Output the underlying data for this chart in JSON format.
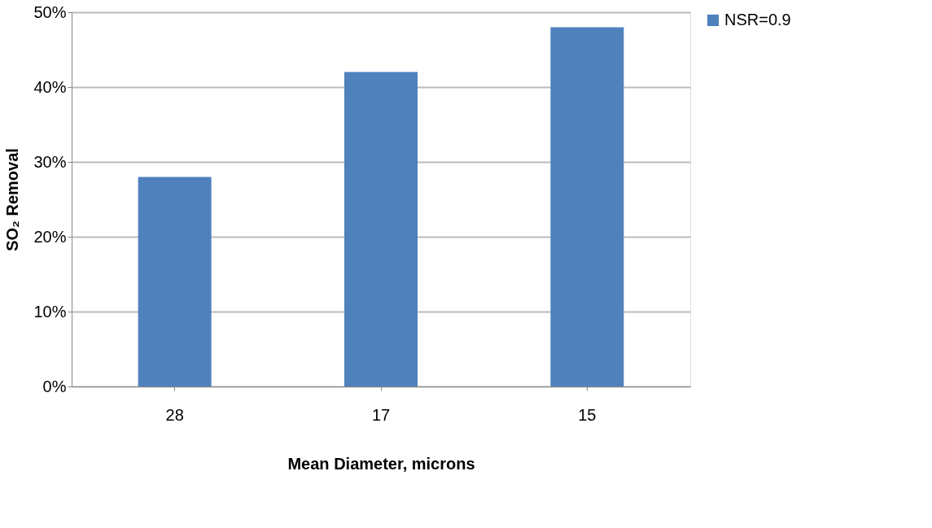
{
  "chart_data": {
    "type": "bar",
    "xlabel": "Mean Diameter, microns",
    "ylabel": "SO₂ Removal",
    "categories": [
      "28",
      "17",
      "15"
    ],
    "series": [
      {
        "name": "NSR=0.9",
        "color": "#4f81bd",
        "values": [
          28,
          42,
          48
        ]
      }
    ],
    "ylim": [
      0,
      50
    ],
    "yticks": [
      {
        "value": 0,
        "label": "0%"
      },
      {
        "value": 10,
        "label": "10%"
      },
      {
        "value": 20,
        "label": "20%"
      },
      {
        "value": 30,
        "label": "30%"
      },
      {
        "value": 40,
        "label": "40%"
      },
      {
        "value": 50,
        "label": "50%"
      }
    ],
    "grid": "y",
    "legend": "right"
  }
}
